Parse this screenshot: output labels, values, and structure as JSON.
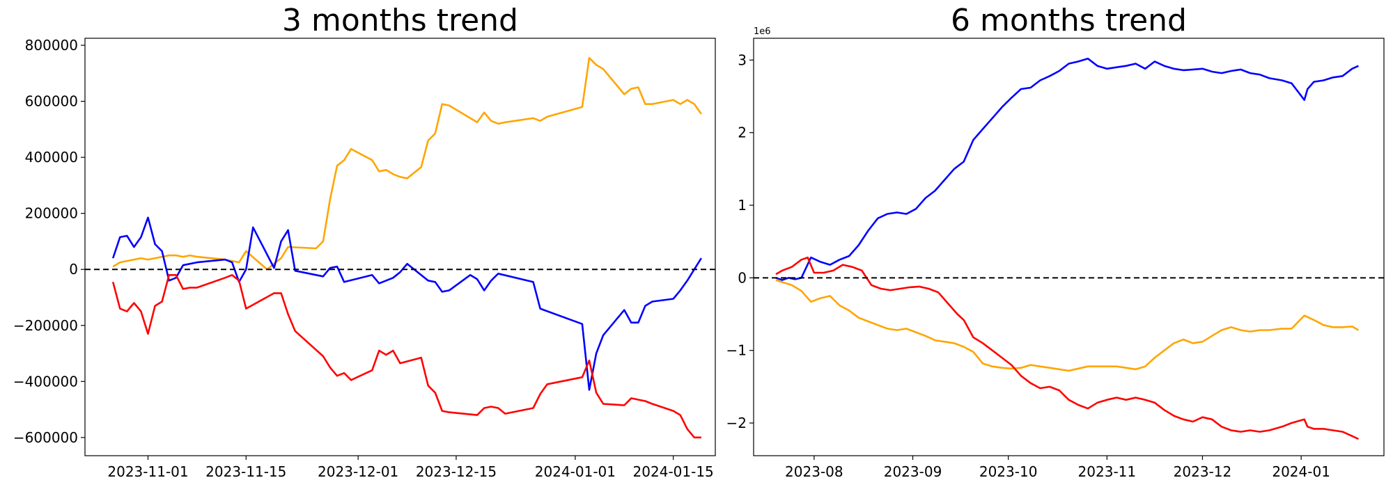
{
  "chart_data": [
    {
      "type": "line",
      "title": "3 months trend",
      "xlabel": "",
      "ylabel": "",
      "x_axis": "date",
      "xlim": [
        "2023-10-23",
        "2024-01-21"
      ],
      "ylim": [
        -665000,
        825000
      ],
      "xticks": [
        "2023-11-01",
        "2023-11-15",
        "2023-12-01",
        "2023-12-15",
        "2024-01-01",
        "2024-01-15"
      ],
      "yticks": [
        800000,
        600000,
        400000,
        200000,
        0,
        -200000,
        -400000,
        -600000
      ],
      "ytick_labels": [
        "800000",
        "600000",
        "400000",
        "200000",
        "0",
        "−200000",
        "−400000",
        "−600000"
      ],
      "reference_line": {
        "y": 0,
        "style": "dashed",
        "color": "#000000"
      },
      "grid": false,
      "legend": "none",
      "series": [
        {
          "color": "#ffa500",
          "x": [
            "2023-10-27",
            "2023-10-28",
            "2023-10-29",
            "2023-10-30",
            "2023-10-31",
            "2023-11-01",
            "2023-11-02",
            "2023-11-03",
            "2023-11-04",
            "2023-11-05",
            "2023-11-06",
            "2023-11-07",
            "2023-11-08",
            "2023-11-12",
            "2023-11-13",
            "2023-11-14",
            "2023-11-15",
            "2023-11-18",
            "2023-11-19",
            "2023-11-20",
            "2023-11-21",
            "2023-11-25",
            "2023-11-26",
            "2023-11-27",
            "2023-11-28",
            "2023-11-29",
            "2023-11-30",
            "2023-12-03",
            "2023-12-04",
            "2023-12-05",
            "2023-12-06",
            "2023-12-07",
            "2023-12-08",
            "2023-12-10",
            "2023-12-11",
            "2023-12-12",
            "2023-12-13",
            "2023-12-14",
            "2023-12-18",
            "2023-12-19",
            "2023-12-20",
            "2023-12-21",
            "2023-12-22",
            "2023-12-26",
            "2023-12-27",
            "2023-12-28",
            "2024-01-02",
            "2024-01-03",
            "2024-01-04",
            "2024-01-05",
            "2024-01-08",
            "2024-01-09",
            "2024-01-10",
            "2024-01-11",
            "2024-01-12",
            "2024-01-15",
            "2024-01-16",
            "2024-01-17",
            "2024-01-18",
            "2024-01-19"
          ],
          "y": [
            10000,
            25000,
            30000,
            35000,
            40000,
            35000,
            40000,
            45000,
            50000,
            50000,
            45000,
            50000,
            45000,
            35000,
            30000,
            25000,
            65000,
            0,
            20000,
            40000,
            80000,
            75000,
            100000,
            250000,
            370000,
            390000,
            430000,
            390000,
            350000,
            355000,
            340000,
            330000,
            325000,
            365000,
            460000,
            485000,
            590000,
            585000,
            525000,
            560000,
            530000,
            520000,
            525000,
            540000,
            530000,
            545000,
            580000,
            755000,
            730000,
            715000,
            625000,
            645000,
            650000,
            590000,
            590000,
            605000,
            590000,
            605000,
            590000,
            555000
          ]
        },
        {
          "color": "#0000ff",
          "x": [
            "2023-10-27",
            "2023-10-28",
            "2023-10-29",
            "2023-10-30",
            "2023-10-31",
            "2023-11-01",
            "2023-11-02",
            "2023-11-03",
            "2023-11-04",
            "2023-11-05",
            "2023-11-06",
            "2023-11-07",
            "2023-11-08",
            "2023-11-12",
            "2023-11-13",
            "2023-11-14",
            "2023-11-15",
            "2023-11-16",
            "2023-11-19",
            "2023-11-20",
            "2023-11-21",
            "2023-11-22",
            "2023-11-23",
            "2023-11-26",
            "2023-11-27",
            "2023-11-28",
            "2023-11-29",
            "2023-12-03",
            "2023-12-04",
            "2023-12-05",
            "2023-12-06",
            "2023-12-07",
            "2023-12-08",
            "2023-12-11",
            "2023-12-12",
            "2023-12-13",
            "2023-12-14",
            "2023-12-17",
            "2023-12-18",
            "2023-12-19",
            "2023-12-20",
            "2023-12-21",
            "2023-12-26",
            "2023-12-27",
            "2024-01-02",
            "2024-01-03",
            "2024-01-04",
            "2024-01-05",
            "2024-01-08",
            "2024-01-09",
            "2024-01-10",
            "2024-01-11",
            "2024-01-12",
            "2024-01-15",
            "2024-01-16",
            "2024-01-17",
            "2024-01-18",
            "2024-01-19"
          ],
          "y": [
            40000,
            115000,
            120000,
            80000,
            115000,
            185000,
            90000,
            65000,
            -40000,
            -30000,
            15000,
            20000,
            25000,
            35000,
            25000,
            -45000,
            0,
            150000,
            5000,
            100000,
            140000,
            -5000,
            -10000,
            -25000,
            5000,
            10000,
            -45000,
            -20000,
            -50000,
            -40000,
            -30000,
            -10000,
            20000,
            -40000,
            -45000,
            -80000,
            -75000,
            -20000,
            -35000,
            -75000,
            -40000,
            -15000,
            -45000,
            -140000,
            -195000,
            -430000,
            -300000,
            -235000,
            -145000,
            -190000,
            -190000,
            -130000,
            -115000,
            -105000,
            -75000,
            -40000,
            0,
            40000
          ]
        },
        {
          "color": "#ff0000",
          "x": [
            "2023-10-27",
            "2023-10-28",
            "2023-10-29",
            "2023-10-30",
            "2023-10-31",
            "2023-11-01",
            "2023-11-02",
            "2023-11-03",
            "2023-11-04",
            "2023-11-05",
            "2023-11-06",
            "2023-11-07",
            "2023-11-08",
            "2023-11-12",
            "2023-11-13",
            "2023-11-14",
            "2023-11-15",
            "2023-11-19",
            "2023-11-20",
            "2023-11-21",
            "2023-11-22",
            "2023-11-26",
            "2023-11-27",
            "2023-11-28",
            "2023-11-29",
            "2023-11-30",
            "2023-12-03",
            "2023-12-04",
            "2023-12-05",
            "2023-12-06",
            "2023-12-07",
            "2023-12-10",
            "2023-12-11",
            "2023-12-12",
            "2023-12-13",
            "2023-12-14",
            "2023-12-18",
            "2023-12-19",
            "2023-12-20",
            "2023-12-21",
            "2023-12-22",
            "2023-12-26",
            "2023-12-27",
            "2023-12-28",
            "2024-01-02",
            "2024-01-03",
            "2024-01-04",
            "2024-01-05",
            "2024-01-08",
            "2024-01-09",
            "2024-01-10",
            "2024-01-11",
            "2024-01-12",
            "2024-01-15",
            "2024-01-16",
            "2024-01-17",
            "2024-01-18",
            "2024-01-19"
          ],
          "y": [
            -45000,
            -140000,
            -150000,
            -120000,
            -150000,
            -230000,
            -130000,
            -115000,
            -20000,
            -20000,
            -70000,
            -65000,
            -65000,
            -30000,
            -20000,
            -40000,
            -140000,
            -85000,
            -85000,
            -160000,
            -220000,
            -310000,
            -350000,
            -380000,
            -370000,
            -395000,
            -360000,
            -290000,
            -305000,
            -290000,
            -335000,
            -315000,
            -415000,
            -440000,
            -505000,
            -510000,
            -520000,
            -495000,
            -490000,
            -495000,
            -515000,
            -495000,
            -445000,
            -410000,
            -385000,
            -325000,
            -440000,
            -480000,
            -485000,
            -460000,
            -465000,
            -470000,
            -480000,
            -505000,
            -520000,
            -570000,
            -600000,
            -600000
          ]
        }
      ]
    },
    {
      "type": "line",
      "title": "6 months trend",
      "xlabel": "",
      "ylabel": "",
      "x_axis": "date",
      "scale_label": "1e6",
      "xlim": [
        "2023-07-13",
        "2024-01-27"
      ],
      "ylim": [
        -2.45,
        3.3
      ],
      "xticks": [
        "2023-08",
        "2023-09",
        "2023-10",
        "2023-11",
        "2023-12",
        "2024-01"
      ],
      "yticks": [
        3,
        2,
        1,
        0,
        -1,
        -2
      ],
      "ytick_labels": [
        "3",
        "2",
        "1",
        "0",
        "−1",
        "−2"
      ],
      "reference_line": {
        "y": 0,
        "style": "dashed",
        "color": "#000000"
      },
      "grid": false,
      "legend": "none",
      "series": [
        {
          "color": "#0000ff",
          "x": [
            "2023-07-20",
            "2023-07-22",
            "2023-07-24",
            "2023-07-26",
            "2023-07-28",
            "2023-07-31",
            "2023-08-03",
            "2023-08-06",
            "2023-08-09",
            "2023-08-12",
            "2023-08-15",
            "2023-08-18",
            "2023-08-21",
            "2023-08-24",
            "2023-08-27",
            "2023-08-30",
            "2023-09-02",
            "2023-09-05",
            "2023-09-08",
            "2023-09-11",
            "2023-09-14",
            "2023-09-17",
            "2023-09-20",
            "2023-09-23",
            "2023-09-26",
            "2023-09-29",
            "2023-10-02",
            "2023-10-05",
            "2023-10-08",
            "2023-10-11",
            "2023-10-14",
            "2023-10-17",
            "2023-10-20",
            "2023-10-23",
            "2023-10-26",
            "2023-10-29",
            "2023-11-01",
            "2023-11-04",
            "2023-11-07",
            "2023-11-10",
            "2023-11-13",
            "2023-11-16",
            "2023-11-19",
            "2023-11-22",
            "2023-11-25",
            "2023-11-28",
            "2023-12-01",
            "2023-12-04",
            "2023-12-07",
            "2023-12-10",
            "2023-12-13",
            "2023-12-16",
            "2023-12-19",
            "2023-12-22",
            "2023-12-26",
            "2023-12-29",
            "2024-01-02",
            "2024-01-03",
            "2024-01-05",
            "2024-01-08",
            "2024-01-11",
            "2024-01-14",
            "2024-01-17",
            "2024-01-19"
          ],
          "y": [
            0.0,
            -0.03,
            0.0,
            -0.02,
            0.0,
            0.28,
            0.22,
            0.18,
            0.25,
            0.3,
            0.45,
            0.65,
            0.82,
            0.88,
            0.9,
            0.88,
            0.95,
            1.1,
            1.2,
            1.35,
            1.5,
            1.6,
            1.9,
            2.05,
            2.2,
            2.35,
            2.48,
            2.6,
            2.62,
            2.72,
            2.78,
            2.85,
            2.95,
            2.98,
            3.02,
            2.92,
            2.88,
            2.9,
            2.92,
            2.95,
            2.88,
            2.98,
            2.92,
            2.88,
            2.86,
            2.87,
            2.88,
            2.84,
            2.82,
            2.85,
            2.87,
            2.82,
            2.8,
            2.75,
            2.72,
            2.68,
            2.45,
            2.6,
            2.7,
            2.72,
            2.76,
            2.78,
            2.88,
            2.92
          ]
        },
        {
          "color": "#ffa500",
          "x": [
            "2023-07-20",
            "2023-07-22",
            "2023-07-25",
            "2023-07-28",
            "2023-07-31",
            "2023-08-03",
            "2023-08-06",
            "2023-08-09",
            "2023-08-12",
            "2023-08-15",
            "2023-08-18",
            "2023-08-21",
            "2023-08-24",
            "2023-08-27",
            "2023-08-30",
            "2023-09-02",
            "2023-09-05",
            "2023-09-08",
            "2023-09-11",
            "2023-09-14",
            "2023-09-17",
            "2023-09-20",
            "2023-09-23",
            "2023-09-26",
            "2023-09-29",
            "2023-10-02",
            "2023-10-05",
            "2023-10-08",
            "2023-10-11",
            "2023-10-14",
            "2023-10-17",
            "2023-10-20",
            "2023-10-23",
            "2023-10-26",
            "2023-10-29",
            "2023-11-01",
            "2023-11-04",
            "2023-11-07",
            "2023-11-10",
            "2023-11-13",
            "2023-11-16",
            "2023-11-19",
            "2023-11-22",
            "2023-11-25",
            "2023-11-28",
            "2023-12-01",
            "2023-12-04",
            "2023-12-07",
            "2023-12-10",
            "2023-12-13",
            "2023-12-16",
            "2023-12-19",
            "2023-12-22",
            "2023-12-26",
            "2023-12-29",
            "2024-01-02",
            "2024-01-05",
            "2024-01-08",
            "2024-01-11",
            "2024-01-14",
            "2024-01-17",
            "2024-01-19"
          ],
          "y": [
            -0.03,
            -0.06,
            -0.1,
            -0.18,
            -0.33,
            -0.28,
            -0.25,
            -0.38,
            -0.45,
            -0.55,
            -0.6,
            -0.65,
            -0.7,
            -0.72,
            -0.7,
            -0.75,
            -0.8,
            -0.86,
            -0.88,
            -0.9,
            -0.95,
            -1.02,
            -1.18,
            -1.22,
            -1.24,
            -1.25,
            -1.24,
            -1.2,
            -1.22,
            -1.24,
            -1.26,
            -1.28,
            -1.25,
            -1.22,
            -1.22,
            -1.22,
            -1.22,
            -1.24,
            -1.26,
            -1.22,
            -1.1,
            -1.0,
            -0.9,
            -0.85,
            -0.9,
            -0.88,
            -0.8,
            -0.72,
            -0.68,
            -0.72,
            -0.74,
            -0.72,
            -0.72,
            -0.7,
            -0.7,
            -0.52,
            -0.58,
            -0.65,
            -0.68,
            -0.68,
            -0.67,
            -0.72
          ]
        },
        {
          "color": "#ff0000",
          "x": [
            "2023-07-20",
            "2023-07-22",
            "2023-07-25",
            "2023-07-28",
            "2023-07-30",
            "2023-08-01",
            "2023-08-04",
            "2023-08-07",
            "2023-08-10",
            "2023-08-13",
            "2023-08-16",
            "2023-08-19",
            "2023-08-22",
            "2023-08-25",
            "2023-08-28",
            "2023-08-31",
            "2023-09-03",
            "2023-09-06",
            "2023-09-09",
            "2023-09-12",
            "2023-09-15",
            "2023-09-17",
            "2023-09-20",
            "2023-09-23",
            "2023-09-26",
            "2023-09-29",
            "2023-10-02",
            "2023-10-05",
            "2023-10-08",
            "2023-10-11",
            "2023-10-14",
            "2023-10-17",
            "2023-10-20",
            "2023-10-23",
            "2023-10-26",
            "2023-10-29",
            "2023-11-01",
            "2023-11-04",
            "2023-11-07",
            "2023-11-10",
            "2023-11-13",
            "2023-11-16",
            "2023-11-19",
            "2023-11-22",
            "2023-11-25",
            "2023-11-28",
            "2023-12-01",
            "2023-12-04",
            "2023-12-07",
            "2023-12-10",
            "2023-12-13",
            "2023-12-16",
            "2023-12-19",
            "2023-12-22",
            "2023-12-26",
            "2023-12-29",
            "2024-01-02",
            "2024-01-03",
            "2024-01-05",
            "2024-01-08",
            "2024-01-11",
            "2024-01-14",
            "2024-01-17",
            "2024-01-19"
          ],
          "y": [
            0.05,
            0.1,
            0.15,
            0.25,
            0.28,
            0.07,
            0.07,
            0.1,
            0.18,
            0.15,
            0.1,
            -0.1,
            -0.15,
            -0.17,
            -0.15,
            -0.13,
            -0.12,
            -0.15,
            -0.2,
            -0.35,
            -0.5,
            -0.58,
            -0.82,
            -0.9,
            -1.0,
            -1.1,
            -1.2,
            -1.35,
            -1.45,
            -1.52,
            -1.5,
            -1.55,
            -1.68,
            -1.75,
            -1.8,
            -1.72,
            -1.68,
            -1.65,
            -1.68,
            -1.65,
            -1.68,
            -1.72,
            -1.82,
            -1.9,
            -1.95,
            -1.98,
            -1.92,
            -1.95,
            -2.05,
            -2.1,
            -2.12,
            -2.1,
            -2.12,
            -2.1,
            -2.05,
            -2.0,
            -1.95,
            -2.05,
            -2.08,
            -2.08,
            -2.1,
            -2.12,
            -2.18,
            -2.22
          ]
        }
      ]
    }
  ]
}
